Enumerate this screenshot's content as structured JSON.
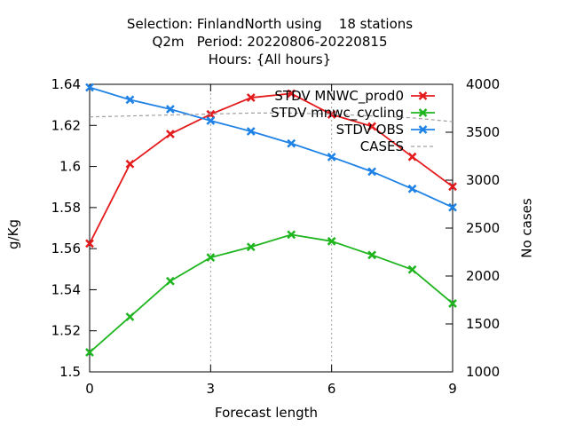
{
  "chart_data": {
    "type": "line",
    "title_lines": [
      "Selection: FinlandNorth using    18 stations",
      "Q2m   Period: 20220806-20220815",
      "Hours: {All hours}"
    ],
    "xlabel": "Forecast length",
    "ylabel": "g/Kg",
    "y2label": "No cases",
    "x": [
      0,
      1,
      2,
      3,
      4,
      5,
      6,
      7,
      8,
      9
    ],
    "xlim": [
      0,
      9
    ],
    "xticks": [
      0,
      3,
      6,
      9
    ],
    "ylim": [
      1.5,
      1.64
    ],
    "yticks": [
      "1.5",
      "1.52",
      "1.54",
      "1.56",
      "1.58",
      "1.6",
      "1.62",
      "1.64"
    ],
    "y2lim": [
      1000,
      4000
    ],
    "y2ticks": [
      "1000",
      "1500",
      "2000",
      "2500",
      "3000",
      "3500",
      "4000"
    ],
    "grid": "dashed at x ticks",
    "legend_position": "top-right",
    "series": [
      {
        "name": "STDV MNWC_prod0",
        "axis": "left",
        "color": "#e41a1c",
        "marker": "x",
        "values": [
          1.5625,
          1.6012,
          1.6158,
          1.6254,
          1.6335,
          1.6355,
          1.6253,
          1.6195,
          1.6047,
          1.5902
        ]
      },
      {
        "name": "STDV mnwc_cycling",
        "axis": "left",
        "color": "#1fb51f",
        "marker": "x",
        "values": [
          1.5095,
          1.5268,
          1.5442,
          1.5557,
          1.5608,
          1.5668,
          1.5636,
          1.5569,
          1.5498,
          1.5333
        ]
      },
      {
        "name": "STDV OBS",
        "axis": "left",
        "color": "#1e82e6",
        "marker": "x",
        "values": [
          1.6385,
          1.6325,
          1.6279,
          1.6223,
          1.6171,
          1.6112,
          1.6046,
          1.5975,
          1.5891,
          1.5801
        ]
      },
      {
        "name": "CASES",
        "axis": "right",
        "color": "#a0a0a0",
        "style": "dashed",
        "values": [
          3660,
          3670,
          3680,
          3690,
          3700,
          3700,
          3690,
          3670,
          3650,
          3610
        ]
      }
    ]
  }
}
